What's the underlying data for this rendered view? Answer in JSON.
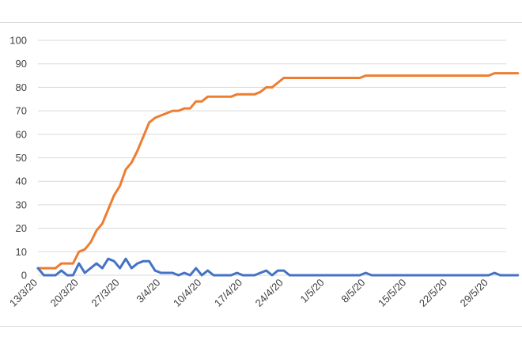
{
  "chart_data": {
    "type": "line",
    "title": "",
    "xlabel": "",
    "ylabel": "",
    "ylim": [
      0,
      100
    ],
    "yticks": [
      0,
      10,
      20,
      30,
      40,
      50,
      60,
      70,
      80,
      90,
      100
    ],
    "grid": true,
    "legend": "none",
    "x_dates": [
      "13/3/20",
      "14/3/20",
      "15/3/20",
      "16/3/20",
      "17/3/20",
      "18/3/20",
      "19/3/20",
      "20/3/20",
      "21/3/20",
      "22/3/20",
      "23/3/20",
      "24/3/20",
      "25/3/20",
      "26/3/20",
      "27/3/20",
      "28/3/20",
      "29/3/20",
      "30/3/20",
      "31/3/20",
      "1/4/20",
      "2/4/20",
      "3/4/20",
      "4/4/20",
      "5/4/20",
      "6/4/20",
      "7/4/20",
      "8/4/20",
      "9/4/20",
      "10/4/20",
      "11/4/20",
      "12/4/20",
      "13/4/20",
      "14/4/20",
      "15/4/20",
      "16/4/20",
      "17/4/20",
      "18/4/20",
      "19/4/20",
      "20/4/20",
      "21/4/20",
      "22/4/20",
      "23/4/20",
      "24/4/20",
      "25/4/20",
      "26/4/20",
      "27/4/20",
      "28/4/20",
      "29/4/20",
      "30/4/20",
      "1/5/20",
      "2/5/20",
      "3/5/20",
      "4/5/20",
      "5/5/20",
      "6/5/20",
      "7/5/20",
      "8/5/20",
      "9/5/20",
      "10/5/20",
      "11/5/20",
      "12/5/20",
      "13/5/20",
      "14/5/20",
      "15/5/20",
      "16/5/20",
      "17/5/20",
      "18/5/20",
      "19/5/20",
      "20/5/20",
      "21/5/20",
      "22/5/20",
      "23/5/20",
      "24/5/20",
      "25/5/20",
      "26/5/20",
      "27/5/20",
      "28/5/20",
      "29/5/20",
      "30/5/20",
      "31/5/20",
      "1/6/20",
      "2/6/20",
      "3/6/20"
    ],
    "x_tick_labels": [
      "13/3/20",
      "20/3/20",
      "27/3/20",
      "3/4/20",
      "10/4/20",
      "17/4/20",
      "24/4/20",
      "1/5/20",
      "8/5/20",
      "15/5/20",
      "22/5/20",
      "29/5/20"
    ],
    "series": [
      {
        "color": "#ed7d31",
        "values": [
          3,
          3,
          3,
          3,
          5,
          5,
          5,
          10,
          11,
          14,
          19,
          22,
          28,
          34,
          38,
          45,
          48,
          53,
          59,
          65,
          67,
          68,
          69,
          70,
          70,
          71,
          71,
          74,
          74,
          76,
          76,
          76,
          76,
          76,
          77,
          77,
          77,
          77,
          78,
          80,
          80,
          82,
          84,
          84,
          84,
          84,
          84,
          84,
          84,
          84,
          84,
          84,
          84,
          84,
          84,
          84,
          85,
          85,
          85,
          85,
          85,
          85,
          85,
          85,
          85,
          85,
          85,
          85,
          85,
          85,
          85,
          85,
          85,
          85,
          85,
          85,
          85,
          85,
          86,
          86,
          86,
          86,
          86
        ]
      },
      {
        "color": "#4472c4",
        "values": [
          3,
          0,
          0,
          0,
          2,
          0,
          0,
          5,
          1,
          3,
          5,
          3,
          7,
          6,
          3,
          7,
          3,
          5,
          6,
          6,
          2,
          1,
          1,
          1,
          0,
          1,
          0,
          3,
          0,
          2,
          0,
          0,
          0,
          0,
          1,
          0,
          0,
          0,
          1,
          2,
          0,
          2,
          2,
          0,
          0,
          0,
          0,
          0,
          0,
          0,
          0,
          0,
          0,
          0,
          0,
          0,
          1,
          0,
          0,
          0,
          0,
          0,
          0,
          0,
          0,
          0,
          0,
          0,
          0,
          0,
          0,
          0,
          0,
          0,
          0,
          0,
          0,
          0,
          1,
          0,
          0,
          0,
          0
        ]
      }
    ]
  }
}
